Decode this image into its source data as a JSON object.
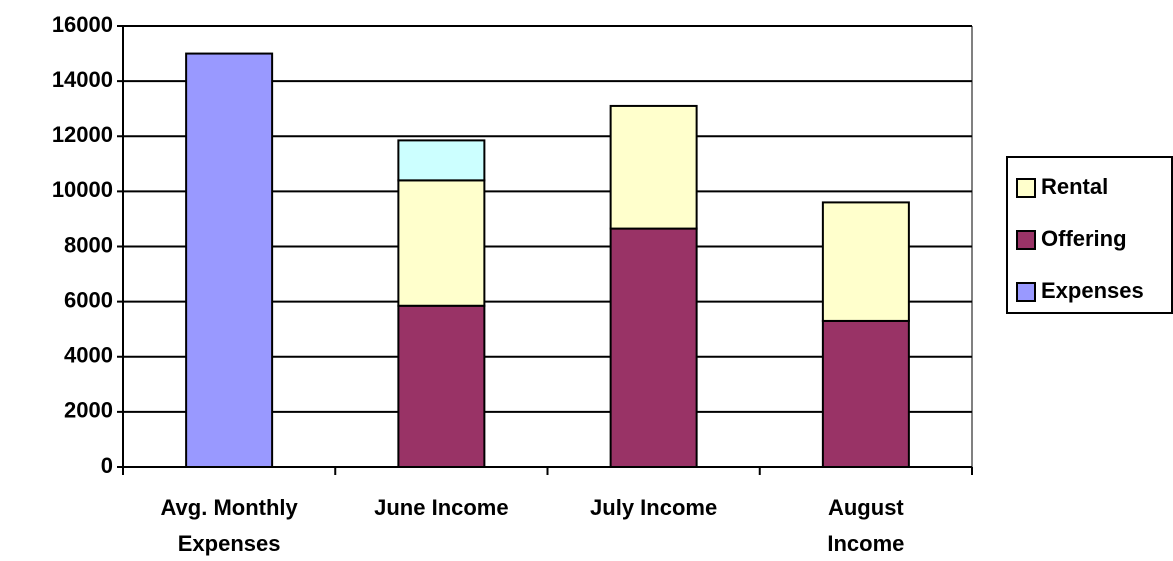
{
  "chart_data": {
    "type": "stacked_bar",
    "categories": [
      "Avg. Monthly Expenses",
      "June Income",
      "July Income",
      "August Income"
    ],
    "series": [
      {
        "name": "Expenses",
        "color": "#9999ff",
        "values": [
          15000,
          null,
          null,
          null
        ]
      },
      {
        "name": "Offering",
        "color": "#993366",
        "values": [
          null,
          5850,
          8650,
          5300
        ]
      },
      {
        "name": "Rental",
        "color": "#ffffcc",
        "values": [
          null,
          4550,
          4450,
          4300
        ]
      },
      {
        "color": "#ccffff",
        "values": [
          null,
          1450,
          null,
          null
        ]
      }
    ],
    "ylim": [
      0,
      16000
    ],
    "yticks": [
      0,
      2000,
      4000,
      6000,
      8000,
      10000,
      12000,
      14000,
      16000
    ],
    "grid": true,
    "legend": "right"
  }
}
